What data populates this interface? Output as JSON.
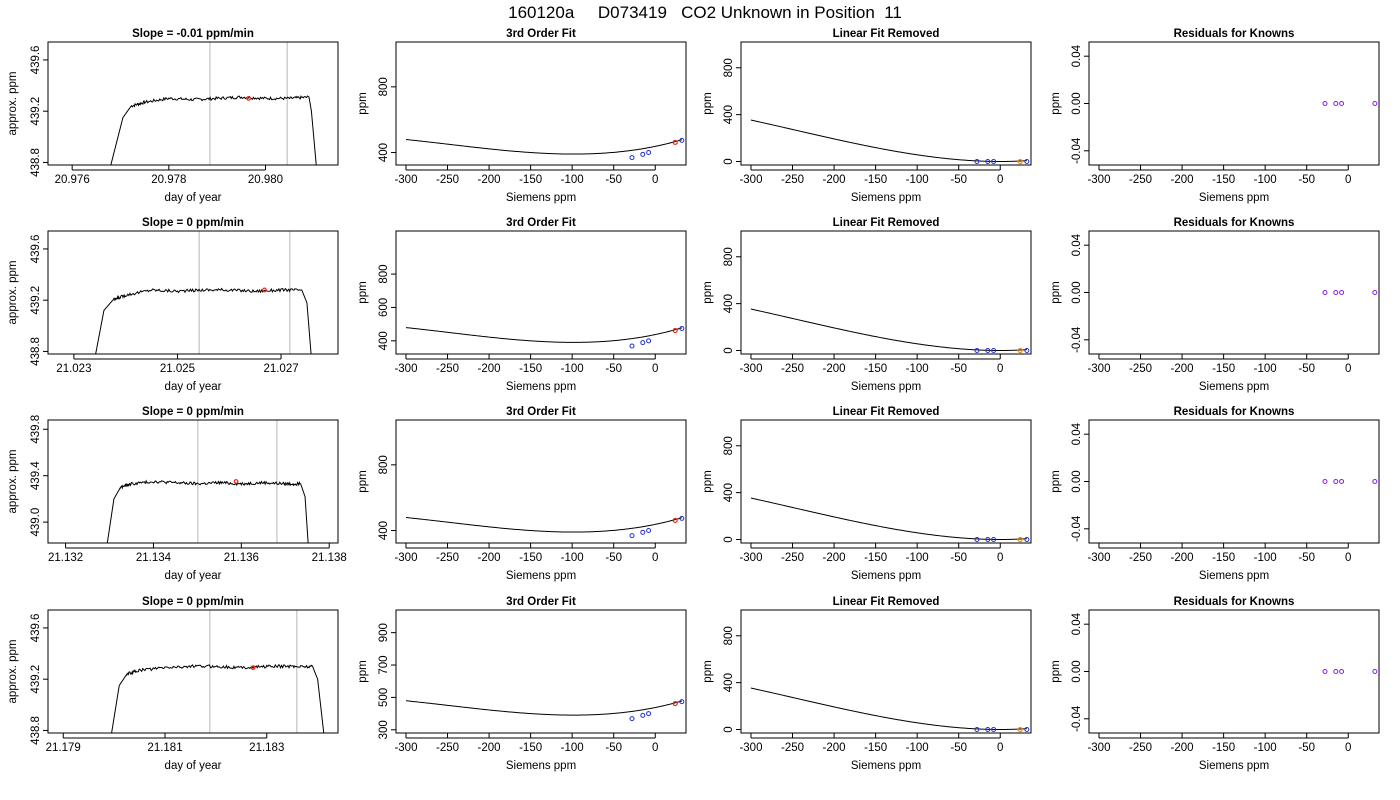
{
  "page_title": "160120a     D073419   CO2 Unknown in Position  11",
  "chart_data": [
    {
      "type": "line",
      "title": "Slope =  -0.01  ppm/min",
      "xlabel": "day of year",
      "ylabel": "approx. ppm",
      "xlim": [
        20.9755,
        20.9815
      ],
      "ylim": [
        438.78,
        439.74
      ],
      "xticks": [
        "20.976",
        "20.978",
        "20.980"
      ],
      "yticks": [
        "438.8",
        "439.2",
        "439.6"
      ],
      "vlines": [
        20.97885,
        20.98045
      ],
      "series": [
        {
          "x": [
            20.9768,
            20.97705,
            20.97722,
            20.9775,
            20.978,
            20.9785,
            20.979,
            20.9795,
            20.98,
            20.9805,
            20.9809,
            20.98095,
            20.98105
          ],
          "values": [
            438.78,
            439.15,
            439.24,
            439.27,
            439.3,
            439.29,
            439.3,
            439.31,
            439.3,
            439.3,
            439.31,
            439.2,
            438.78
          ]
        }
      ],
      "marker": {
        "x": 20.97965,
        "y": 439.3,
        "color": "#e8261b"
      }
    },
    {
      "type": "line",
      "title": "3rd Order Fit",
      "xlabel": "Siemens ppm",
      "ylabel": "ppm",
      "xlim": [
        -312,
        37
      ],
      "ylim": [
        324,
        1073
      ],
      "xticks": [
        "-300",
        "-250",
        "-200",
        "-150",
        "-100",
        "-50",
        "0"
      ],
      "yticks": [
        "400",
        "800"
      ],
      "curve": {
        "coef": [
          437.5,
          1.04,
          0.0066,
          8.9e-06
        ],
        "x_range": [
          -300,
          32
        ]
      },
      "known_points": {
        "x": [
          -28,
          -15,
          -8,
          32
        ],
        "y": [
          369,
          389,
          400,
          474
        ],
        "color": "#2030d8"
      },
      "unknown_point": {
        "x": 24,
        "y": 462,
        "color": "#e8261b"
      }
    },
    {
      "type": "line",
      "title": "Linear Fit Removed",
      "xlabel": "Siemens ppm",
      "ylabel": "ppm",
      "xlim": [
        -312,
        37
      ],
      "ylim": [
        -30,
        1020
      ],
      "xticks": [
        "-300",
        "-250",
        "-200",
        "-150",
        "-100",
        "-50",
        "0"
      ],
      "yticks": [
        "0",
        "400",
        "800"
      ],
      "curve": {
        "coef": [
          0,
          0,
          0.0066,
          8.9e-06
        ],
        "x_range": [
          -300,
          32
        ]
      },
      "known_points": {
        "x": [
          -28,
          -15,
          -8,
          32
        ],
        "y": [
          0,
          0,
          0,
          0
        ],
        "color": "#2030d8"
      },
      "unknown_point": {
        "x": 24,
        "y": 0,
        "color": "#f08a16"
      }
    },
    {
      "type": "scatter",
      "title": "Residuals for Knowns",
      "xlabel": "Siemens ppm",
      "ylabel": "ppm",
      "xlim": [
        -312,
        37
      ],
      "ylim": [
        -0.052,
        0.052
      ],
      "xticks": [
        "-300",
        "-250",
        "-200",
        "-150",
        "-100",
        "-50",
        "0"
      ],
      "yticks": [
        "-0.04",
        "0.00",
        "0.04"
      ],
      "known_points": {
        "x": [
          -28,
          -15,
          -8,
          32
        ],
        "y": [
          0,
          0,
          0,
          0
        ],
        "color": "#8a1fe8"
      }
    },
    {
      "type": "line",
      "title": "Slope =  0  ppm/min",
      "xlabel": "day of year",
      "ylabel": "approx. ppm",
      "xlim": [
        21.0225,
        21.0281
      ],
      "ylim": [
        438.78,
        439.74
      ],
      "xticks": [
        "21.023",
        "21.025",
        "21.027"
      ],
      "yticks": [
        "438.8",
        "439.2",
        "439.6"
      ],
      "vlines": [
        21.02542,
        21.02717
      ],
      "series": [
        {
          "x": [
            21.02342,
            21.02358,
            21.02375,
            21.024,
            21.0245,
            21.025,
            21.0255,
            21.026,
            21.0265,
            21.027,
            21.0274,
            21.0275,
            21.02758
          ],
          "values": [
            438.78,
            439.12,
            439.2,
            439.24,
            439.28,
            439.27,
            439.28,
            439.28,
            439.27,
            439.28,
            439.28,
            439.18,
            438.78
          ]
        }
      ],
      "marker": {
        "x": 21.02668,
        "y": 439.28,
        "color": "#e8261b"
      }
    },
    {
      "type": "line",
      "title": "3rd Order Fit",
      "xlabel": "Siemens ppm",
      "ylabel": "ppm",
      "xlim": [
        -312,
        37
      ],
      "ylim": [
        321,
        1058
      ],
      "xticks": [
        "-300",
        "-250",
        "-200",
        "-150",
        "-100",
        "-50",
        "0"
      ],
      "yticks": [
        "400",
        "600",
        "800"
      ],
      "curve": {
        "coef": [
          437.5,
          1.04,
          0.0066,
          8.9e-06
        ],
        "x_range": [
          -300,
          32
        ]
      },
      "known_points": {
        "x": [
          -28,
          -15,
          -8,
          32
        ],
        "y": [
          369,
          389,
          400,
          474
        ],
        "color": "#2030d8"
      },
      "unknown_point": {
        "x": 24,
        "y": 462,
        "color": "#e8261b"
      }
    },
    {
      "type": "line",
      "title": "Linear Fit Removed",
      "xlabel": "Siemens ppm",
      "ylabel": "ppm",
      "xlim": [
        -312,
        37
      ],
      "ylim": [
        -30,
        1020
      ],
      "xticks": [
        "-300",
        "-250",
        "-200",
        "-150",
        "-100",
        "-50",
        "0"
      ],
      "yticks": [
        "0",
        "400",
        "800"
      ],
      "curve": {
        "coef": [
          0,
          0,
          0.0066,
          8.9e-06
        ],
        "x_range": [
          -300,
          32
        ]
      },
      "known_points": {
        "x": [
          -28,
          -15,
          -8,
          32
        ],
        "y": [
          0,
          0,
          0,
          0
        ],
        "color": "#2030d8"
      },
      "unknown_point": {
        "x": 24,
        "y": 0,
        "color": "#f08a16"
      }
    },
    {
      "type": "scatter",
      "title": "Residuals for Knowns",
      "xlabel": "Siemens ppm",
      "ylabel": "ppm",
      "xlim": [
        -312,
        37
      ],
      "ylim": [
        -0.052,
        0.052
      ],
      "xticks": [
        "-300",
        "-250",
        "-200",
        "-150",
        "-100",
        "-50",
        "0"
      ],
      "yticks": [
        "-0.04",
        "0.00",
        "0.04"
      ],
      "known_points": {
        "x": [
          -28,
          -15,
          -8,
          32
        ],
        "y": [
          0,
          0,
          0,
          0
        ],
        "color": "#8a1fe8"
      }
    },
    {
      "type": "line",
      "title": "Slope =  0  ppm/min",
      "xlabel": "day of year",
      "ylabel": "approx. ppm",
      "xlim": [
        21.1316,
        21.1382
      ],
      "ylim": [
        438.82,
        439.88
      ],
      "xticks": [
        "21.132",
        "21.134",
        "21.136",
        "21.138"
      ],
      "yticks": [
        "439.0",
        "439.4",
        "439.8"
      ],
      "vlines": [
        21.13501,
        21.13681
      ],
      "series": [
        {
          "x": [
            21.13295,
            21.1331,
            21.13325,
            21.1335,
            21.134,
            21.1345,
            21.135,
            21.1355,
            21.136,
            21.1365,
            21.137,
            21.13735,
            21.13745,
            21.13752
          ],
          "values": [
            438.82,
            439.2,
            439.3,
            439.33,
            439.35,
            439.34,
            439.33,
            439.34,
            439.33,
            439.34,
            439.33,
            439.33,
            439.22,
            438.82
          ]
        }
      ],
      "marker": {
        "x": 21.13588,
        "y": 439.35,
        "color": "#e8261b"
      }
    },
    {
      "type": "line",
      "title": "3rd Order Fit",
      "xlabel": "Siemens ppm",
      "ylabel": "ppm",
      "xlim": [
        -312,
        37
      ],
      "ylim": [
        324,
        1073
      ],
      "xticks": [
        "-300",
        "-250",
        "-200",
        "-150",
        "-100",
        "-50",
        "0"
      ],
      "yticks": [
        "400",
        "800"
      ],
      "curve": {
        "coef": [
          437.5,
          1.04,
          0.0066,
          8.9e-06
        ],
        "x_range": [
          -300,
          32
        ]
      },
      "known_points": {
        "x": [
          -28,
          -15,
          -8,
          32
        ],
        "y": [
          369,
          389,
          400,
          474
        ],
        "color": "#2030d8"
      },
      "unknown_point": {
        "x": 24,
        "y": 462,
        "color": "#e8261b"
      }
    },
    {
      "type": "line",
      "title": "Linear Fit Removed",
      "xlabel": "Siemens ppm",
      "ylabel": "ppm",
      "xlim": [
        -312,
        37
      ],
      "ylim": [
        -30,
        1020
      ],
      "xticks": [
        "-300",
        "-250",
        "-200",
        "-150",
        "-100",
        "-50",
        "0"
      ],
      "yticks": [
        "0",
        "400",
        "800"
      ],
      "curve": {
        "coef": [
          0,
          0,
          0.0066,
          8.9e-06
        ],
        "x_range": [
          -300,
          32
        ]
      },
      "known_points": {
        "x": [
          -28,
          -15,
          -8,
          32
        ],
        "y": [
          0,
          0,
          0,
          0
        ],
        "color": "#2030d8"
      },
      "unknown_point": {
        "x": 24,
        "y": 0,
        "color": "#f08a16"
      }
    },
    {
      "type": "scatter",
      "title": "Residuals for Knowns",
      "xlabel": "Siemens ppm",
      "ylabel": "ppm",
      "xlim": [
        -312,
        37
      ],
      "ylim": [
        -0.052,
        0.052
      ],
      "xticks": [
        "-300",
        "-250",
        "-200",
        "-150",
        "-100",
        "-50",
        "0"
      ],
      "yticks": [
        "-0.04",
        "0.00",
        "0.04"
      ],
      "known_points": {
        "x": [
          -28,
          -15,
          -8,
          32
        ],
        "y": [
          0,
          0,
          0,
          0
        ],
        "color": "#8a1fe8"
      }
    },
    {
      "type": "line",
      "title": "Slope =  0  ppm/min",
      "xlabel": "day of year",
      "ylabel": "approx. ppm",
      "xlim": [
        21.1787,
        21.1844
      ],
      "ylim": [
        438.78,
        439.74
      ],
      "xticks": [
        "21.179",
        "21.181",
        "21.183"
      ],
      "yticks": [
        "438.8",
        "439.2",
        "439.6"
      ],
      "vlines": [
        21.18188,
        21.18359
      ],
      "series": [
        {
          "x": [
            21.17995,
            21.1801,
            21.18025,
            21.1805,
            21.181,
            21.1815,
            21.182,
            21.1825,
            21.183,
            21.1835,
            21.1839,
            21.184,
            21.18412
          ],
          "values": [
            438.78,
            439.15,
            439.24,
            439.27,
            439.29,
            439.3,
            439.3,
            439.29,
            439.3,
            439.3,
            439.3,
            439.2,
            438.78
          ]
        }
      ],
      "marker": {
        "x": 21.18273,
        "y": 439.29,
        "color": "#e8261b"
      }
    },
    {
      "type": "line",
      "title": "3rd Order Fit",
      "xlabel": "Siemens ppm",
      "ylabel": "ppm",
      "xlim": [
        -312,
        37
      ],
      "ylim": [
        280,
        1040
      ],
      "xticks": [
        "-300",
        "-250",
        "-200",
        "-150",
        "-100",
        "-50",
        "0"
      ],
      "yticks": [
        "300",
        "500",
        "700",
        "900"
      ],
      "curve": {
        "coef": [
          437.5,
          1.04,
          0.0066,
          8.9e-06
        ],
        "x_range": [
          -300,
          32
        ]
      },
      "known_points": {
        "x": [
          -28,
          -15,
          -8,
          32
        ],
        "y": [
          369,
          389,
          400,
          474
        ],
        "color": "#2030d8"
      },
      "unknown_point": {
        "x": 24,
        "y": 462,
        "color": "#e8261b"
      }
    },
    {
      "type": "line",
      "title": "Linear Fit Removed",
      "xlabel": "Siemens ppm",
      "ylabel": "ppm",
      "xlim": [
        -312,
        37
      ],
      "ylim": [
        -30,
        1020
      ],
      "xticks": [
        "-300",
        "-250",
        "-200",
        "-150",
        "-100",
        "-50",
        "0"
      ],
      "yticks": [
        "0",
        "400",
        "800"
      ],
      "curve": {
        "coef": [
          0,
          0,
          0.0066,
          8.9e-06
        ],
        "x_range": [
          -300,
          32
        ]
      },
      "known_points": {
        "x": [
          -28,
          -15,
          -8,
          32
        ],
        "y": [
          0,
          0,
          0,
          0
        ],
        "color": "#2030d8"
      },
      "unknown_point": {
        "x": 24,
        "y": 0,
        "color": "#f08a16"
      }
    },
    {
      "type": "scatter",
      "title": "Residuals for Knowns",
      "xlabel": "Siemens ppm",
      "ylabel": "ppm",
      "xlim": [
        -312,
        37
      ],
      "ylim": [
        -0.052,
        0.052
      ],
      "xticks": [
        "-300",
        "-250",
        "-200",
        "-150",
        "-100",
        "-50",
        "0"
      ],
      "yticks": [
        "-0.04",
        "0.00",
        "0.04"
      ],
      "known_points": {
        "x": [
          -28,
          -15,
          -8,
          32
        ],
        "y": [
          0,
          0,
          0,
          0
        ],
        "color": "#8a1fe8"
      }
    }
  ]
}
